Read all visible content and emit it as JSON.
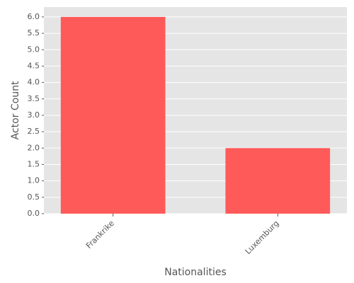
{
  "chart_data": {
    "type": "bar",
    "x_label": "Nationalities",
    "y_label": "Actor Count",
    "categories": [
      "Frankrike",
      "Luxemburg"
    ],
    "values": [
      6,
      2
    ],
    "color": "#ff5a5a",
    "ylim": [
      0,
      6.3
    ],
    "yticks": [
      {
        "value": 0,
        "label": "0.0"
      },
      {
        "value": 0.5,
        "label": "0.5"
      },
      {
        "value": 1,
        "label": "1.0"
      },
      {
        "value": 1.5,
        "label": "1.5"
      },
      {
        "value": 2,
        "label": "2.0"
      },
      {
        "value": 2.5,
        "label": "2.5"
      },
      {
        "value": 3,
        "label": "3.0"
      },
      {
        "value": 3.5,
        "label": "3.5"
      },
      {
        "value": 4,
        "label": "4.0"
      },
      {
        "value": 4.5,
        "label": "4.5"
      },
      {
        "value": 5,
        "label": "5.0"
      },
      {
        "value": 5.5,
        "label": "5.5"
      },
      {
        "value": 6,
        "label": "6.0"
      }
    ],
    "grid": true
  }
}
